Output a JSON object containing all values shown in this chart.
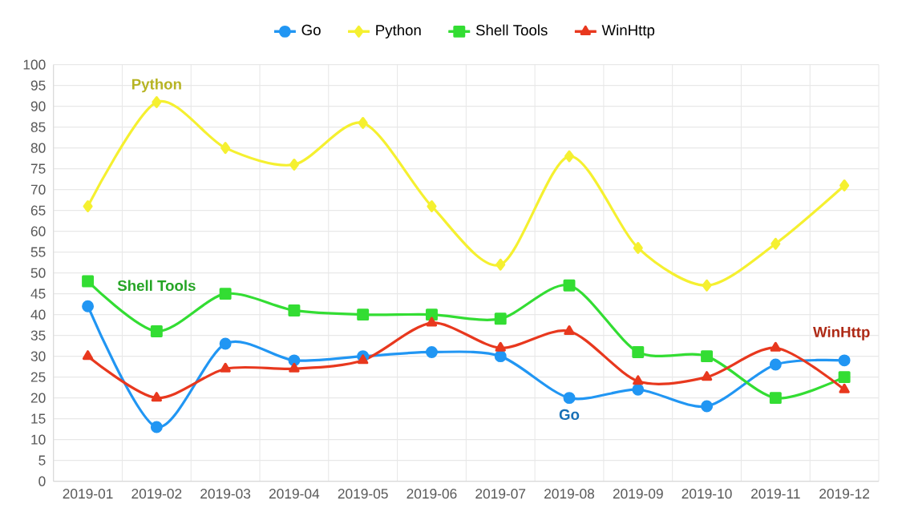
{
  "chart_data": {
    "type": "line",
    "categories": [
      "2019-01",
      "2019-02",
      "2019-03",
      "2019-04",
      "2019-05",
      "2019-06",
      "2019-07",
      "2019-08",
      "2019-09",
      "2019-10",
      "2019-11",
      "2019-12"
    ],
    "series": [
      {
        "name": "Go",
        "color": "#2196f3",
        "marker": "circle",
        "values": [
          42,
          13,
          33,
          29,
          30,
          31,
          30,
          20,
          22,
          18,
          28,
          29
        ]
      },
      {
        "name": "Python",
        "color": "#f5f030",
        "marker": "diamond",
        "values": [
          66,
          91,
          80,
          76,
          86,
          66,
          52,
          78,
          56,
          47,
          57,
          71
        ]
      },
      {
        "name": "Shell Tools",
        "color": "#33dd33",
        "marker": "square",
        "values": [
          48,
          36,
          45,
          41,
          40,
          40,
          39,
          47,
          31,
          30,
          20,
          25
        ]
      },
      {
        "name": "WinHttp",
        "color": "#e8381e",
        "marker": "triangle",
        "values": [
          30,
          20,
          27,
          27,
          29,
          38,
          32,
          36,
          24,
          25,
          32,
          22
        ]
      }
    ],
    "annotations": [
      "Python",
      "Shell Tools",
      "Go",
      "WinHttp"
    ],
    "ylim": [
      0,
      100
    ],
    "yticks": [
      0,
      5,
      10,
      15,
      20,
      25,
      30,
      35,
      40,
      45,
      50,
      55,
      60,
      65,
      70,
      75,
      80,
      85,
      90,
      95,
      100
    ],
    "grid": true,
    "legend": "top",
    "line_style": "solid"
  }
}
